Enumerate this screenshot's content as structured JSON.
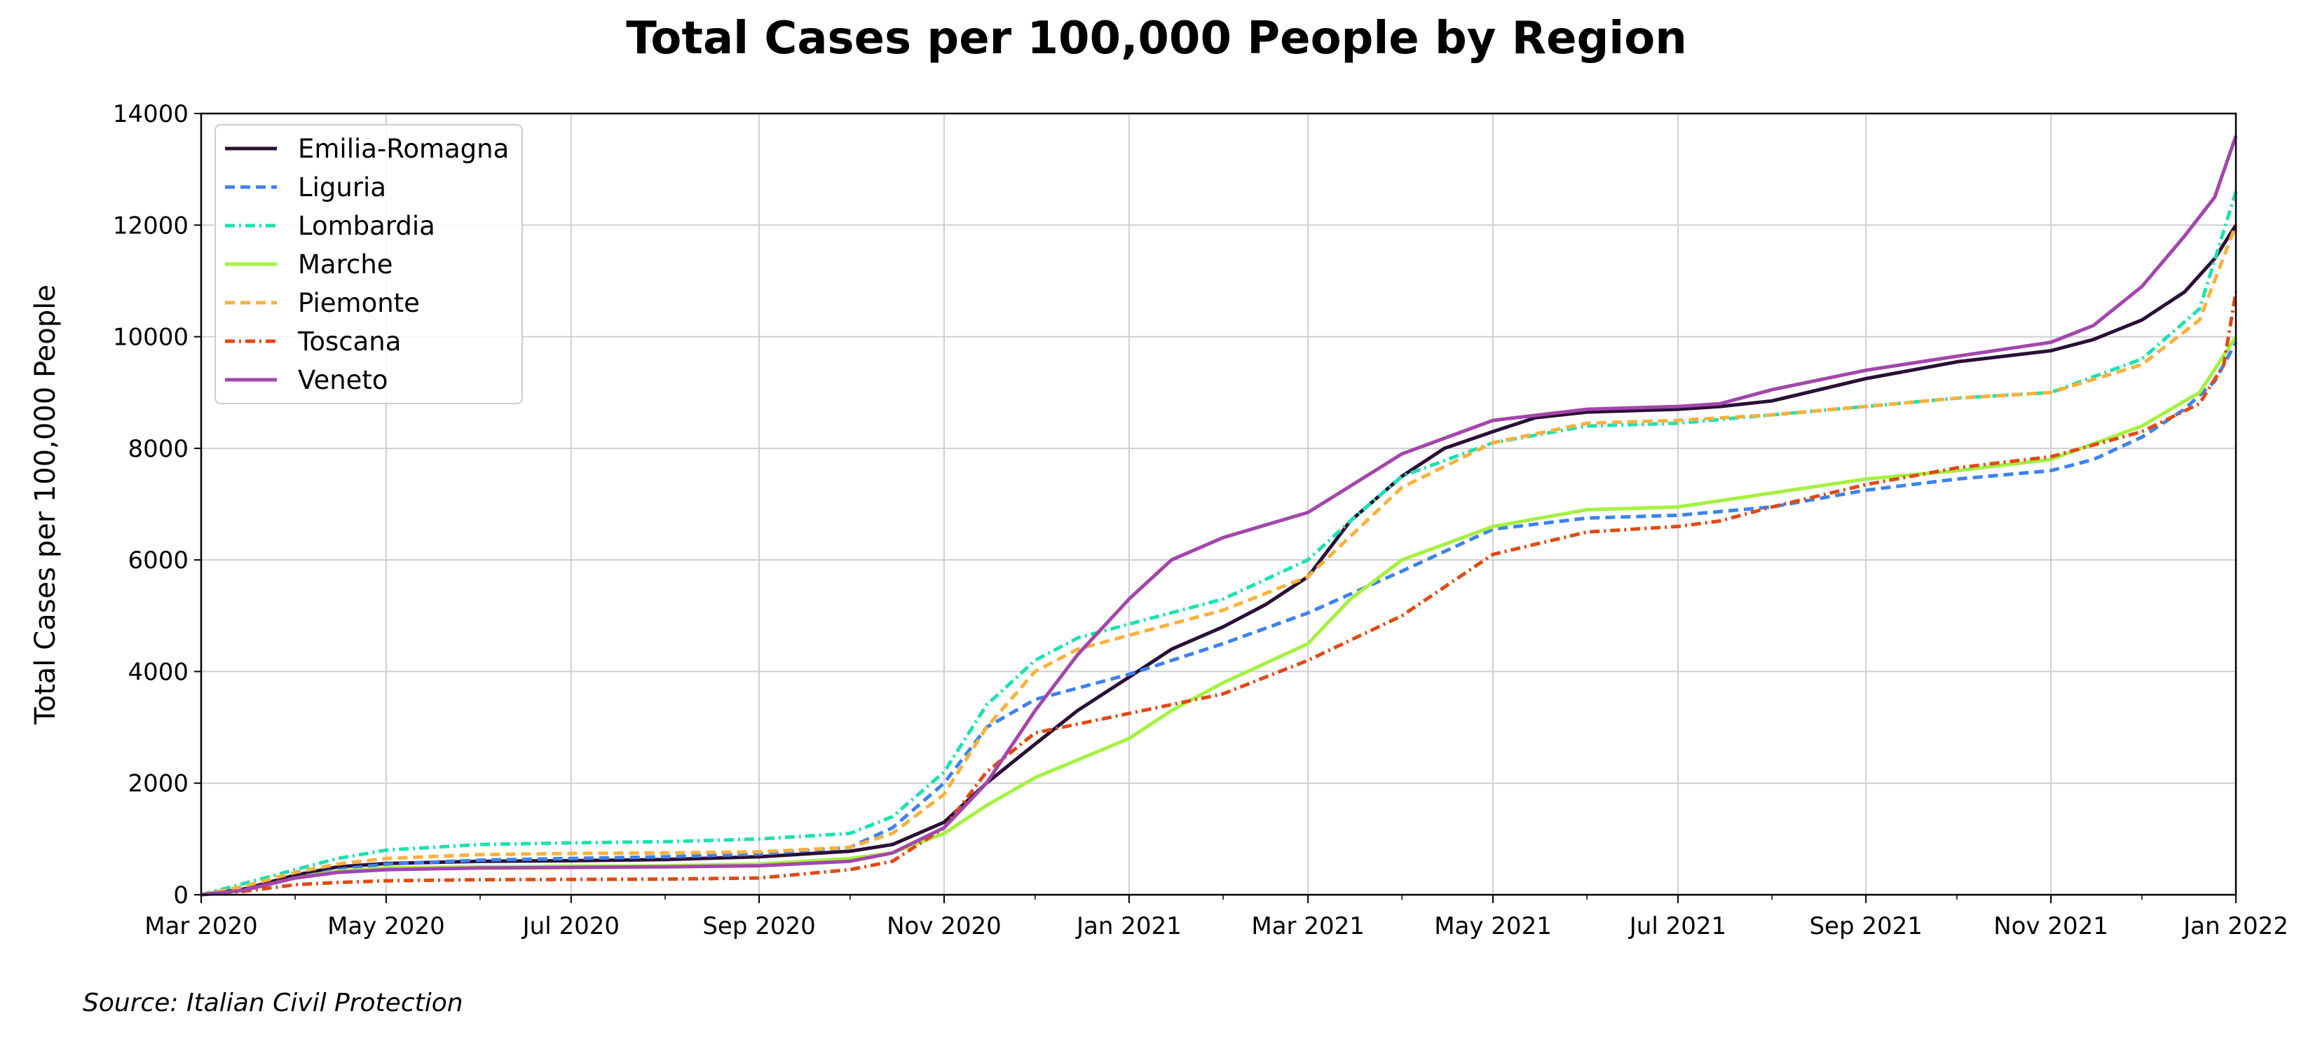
{
  "chart_data": {
    "type": "line",
    "title": "Total Cases per 100,000 People by Region",
    "xlabel": "",
    "ylabel": "Total Cases per 100,000 People",
    "source": "Source: Italian Civil Protection",
    "xlim": [
      "2020-03-01",
      "2022-01-01"
    ],
    "ylim": [
      0,
      14000
    ],
    "x_ticks": [
      {
        "date": "2020-03-01",
        "label": "Mar 2020"
      },
      {
        "date": "2020-05-01",
        "label": "May 2020"
      },
      {
        "date": "2020-07-01",
        "label": "Jul 2020"
      },
      {
        "date": "2020-09-01",
        "label": "Sep 2020"
      },
      {
        "date": "2020-11-01",
        "label": "Nov 2020"
      },
      {
        "date": "2021-01-01",
        "label": "Jan 2021"
      },
      {
        "date": "2021-03-01",
        "label": "Mar 2021"
      },
      {
        "date": "2021-05-01",
        "label": "May 2021"
      },
      {
        "date": "2021-07-01",
        "label": "Jul 2021"
      },
      {
        "date": "2021-09-01",
        "label": "Sep 2021"
      },
      {
        "date": "2021-11-01",
        "label": "Nov 2021"
      },
      {
        "date": "2022-01-01",
        "label": "Jan 2022"
      }
    ],
    "y_ticks": [
      0,
      2000,
      4000,
      6000,
      8000,
      10000,
      12000,
      14000
    ],
    "grid": true,
    "legend_position": "top-left",
    "series": [
      {
        "name": "Emilia-Romagna",
        "color": "#2a0f36",
        "dash": "solid",
        "points": [
          [
            "2020-03-01",
            0
          ],
          [
            "2020-03-15",
            100
          ],
          [
            "2020-04-01",
            350
          ],
          [
            "2020-04-15",
            500
          ],
          [
            "2020-05-01",
            560
          ],
          [
            "2020-06-01",
            600
          ],
          [
            "2020-07-01",
            610
          ],
          [
            "2020-08-01",
            630
          ],
          [
            "2020-09-01",
            680
          ],
          [
            "2020-10-01",
            780
          ],
          [
            "2020-10-15",
            900
          ],
          [
            "2020-11-01",
            1300
          ],
          [
            "2020-11-15",
            2000
          ],
          [
            "2020-12-01",
            2700
          ],
          [
            "2020-12-15",
            3300
          ],
          [
            "2021-01-01",
            3900
          ],
          [
            "2021-01-15",
            4400
          ],
          [
            "2021-02-01",
            4800
          ],
          [
            "2021-02-15",
            5200
          ],
          [
            "2021-03-01",
            5700
          ],
          [
            "2021-03-15",
            6700
          ],
          [
            "2021-04-01",
            7500
          ],
          [
            "2021-04-15",
            8000
          ],
          [
            "2021-05-01",
            8300
          ],
          [
            "2021-05-15",
            8550
          ],
          [
            "2021-06-01",
            8650
          ],
          [
            "2021-07-01",
            8700
          ],
          [
            "2021-07-15",
            8750
          ],
          [
            "2021-08-01",
            8850
          ],
          [
            "2021-09-01",
            9250
          ],
          [
            "2021-10-01",
            9550
          ],
          [
            "2021-11-01",
            9750
          ],
          [
            "2021-11-15",
            9950
          ],
          [
            "2021-12-01",
            10300
          ],
          [
            "2021-12-15",
            10800
          ],
          [
            "2021-12-25",
            11400
          ],
          [
            "2022-01-01",
            12000
          ]
        ]
      },
      {
        "name": "Liguria",
        "color": "#3d82ee",
        "dash": "dashed",
        "points": [
          [
            "2020-03-01",
            0
          ],
          [
            "2020-03-15",
            80
          ],
          [
            "2020-04-01",
            300
          ],
          [
            "2020-04-15",
            450
          ],
          [
            "2020-05-01",
            550
          ],
          [
            "2020-06-01",
            620
          ],
          [
            "2020-07-01",
            650
          ],
          [
            "2020-08-01",
            680
          ],
          [
            "2020-09-01",
            730
          ],
          [
            "2020-10-01",
            850
          ],
          [
            "2020-10-15",
            1200
          ],
          [
            "2020-11-01",
            2000
          ],
          [
            "2020-11-15",
            3000
          ],
          [
            "2020-12-01",
            3500
          ],
          [
            "2021-01-01",
            3950
          ],
          [
            "2021-02-01",
            4500
          ],
          [
            "2021-03-01",
            5050
          ],
          [
            "2021-04-01",
            5800
          ],
          [
            "2021-05-01",
            6550
          ],
          [
            "2021-06-01",
            6750
          ],
          [
            "2021-07-01",
            6800
          ],
          [
            "2021-08-01",
            6950
          ],
          [
            "2021-09-01",
            7250
          ],
          [
            "2021-10-01",
            7450
          ],
          [
            "2021-11-01",
            7600
          ],
          [
            "2021-11-15",
            7800
          ],
          [
            "2021-12-01",
            8200
          ],
          [
            "2021-12-15",
            8700
          ],
          [
            "2021-12-25",
            9200
          ],
          [
            "2022-01-01",
            9900
          ]
        ]
      },
      {
        "name": "Lombardia",
        "color": "#1ee0b0",
        "dash": "dashdot",
        "points": [
          [
            "2020-03-01",
            0
          ],
          [
            "2020-03-15",
            200
          ],
          [
            "2020-04-01",
            450
          ],
          [
            "2020-04-15",
            650
          ],
          [
            "2020-05-01",
            800
          ],
          [
            "2020-06-01",
            900
          ],
          [
            "2020-07-01",
            930
          ],
          [
            "2020-08-01",
            950
          ],
          [
            "2020-09-01",
            1000
          ],
          [
            "2020-10-01",
            1100
          ],
          [
            "2020-10-15",
            1400
          ],
          [
            "2020-11-01",
            2200
          ],
          [
            "2020-11-15",
            3400
          ],
          [
            "2020-12-01",
            4200
          ],
          [
            "2020-12-15",
            4600
          ],
          [
            "2021-01-01",
            4850
          ],
          [
            "2021-02-01",
            5300
          ],
          [
            "2021-03-01",
            6000
          ],
          [
            "2021-03-15",
            6700
          ],
          [
            "2021-04-01",
            7500
          ],
          [
            "2021-05-01",
            8100
          ],
          [
            "2021-06-01",
            8400
          ],
          [
            "2021-07-01",
            8450
          ],
          [
            "2021-08-01",
            8600
          ],
          [
            "2021-09-01",
            8750
          ],
          [
            "2021-10-01",
            8900
          ],
          [
            "2021-11-01",
            9000
          ],
          [
            "2021-12-01",
            9600
          ],
          [
            "2021-12-20",
            10500
          ],
          [
            "2022-01-01",
            12600
          ]
        ]
      },
      {
        "name": "Marche",
        "color": "#a4f140",
        "dash": "solid",
        "points": [
          [
            "2020-03-01",
            0
          ],
          [
            "2020-03-15",
            80
          ],
          [
            "2020-04-01",
            300
          ],
          [
            "2020-04-15",
            420
          ],
          [
            "2020-05-01",
            480
          ],
          [
            "2020-06-01",
            500
          ],
          [
            "2020-07-01",
            510
          ],
          [
            "2020-08-01",
            520
          ],
          [
            "2020-09-01",
            550
          ],
          [
            "2020-10-01",
            650
          ],
          [
            "2020-10-15",
            750
          ],
          [
            "2020-11-01",
            1100
          ],
          [
            "2020-11-15",
            1600
          ],
          [
            "2020-12-01",
            2100
          ],
          [
            "2021-01-01",
            2800
          ],
          [
            "2021-01-15",
            3300
          ],
          [
            "2021-02-01",
            3800
          ],
          [
            "2021-03-01",
            4500
          ],
          [
            "2021-03-15",
            5300
          ],
          [
            "2021-04-01",
            6000
          ],
          [
            "2021-05-01",
            6600
          ],
          [
            "2021-06-01",
            6900
          ],
          [
            "2021-07-01",
            6950
          ],
          [
            "2021-08-01",
            7200
          ],
          [
            "2021-09-01",
            7450
          ],
          [
            "2021-10-01",
            7600
          ],
          [
            "2021-11-01",
            7800
          ],
          [
            "2021-12-01",
            8400
          ],
          [
            "2021-12-20",
            9000
          ],
          [
            "2022-01-01",
            10000
          ]
        ]
      },
      {
        "name": "Piemonte",
        "color": "#fbb13c",
        "dash": "dashed",
        "points": [
          [
            "2020-03-01",
            0
          ],
          [
            "2020-03-15",
            150
          ],
          [
            "2020-04-01",
            400
          ],
          [
            "2020-04-15",
            550
          ],
          [
            "2020-05-01",
            650
          ],
          [
            "2020-06-01",
            720
          ],
          [
            "2020-07-01",
            740
          ],
          [
            "2020-08-01",
            750
          ],
          [
            "2020-09-01",
            770
          ],
          [
            "2020-10-01",
            850
          ],
          [
            "2020-10-15",
            1100
          ],
          [
            "2020-11-01",
            1800
          ],
          [
            "2020-11-15",
            3000
          ],
          [
            "2020-12-01",
            4000
          ],
          [
            "2020-12-15",
            4400
          ],
          [
            "2021-01-01",
            4650
          ],
          [
            "2021-02-01",
            5100
          ],
          [
            "2021-03-01",
            5700
          ],
          [
            "2021-04-01",
            7300
          ],
          [
            "2021-05-01",
            8100
          ],
          [
            "2021-06-01",
            8450
          ],
          [
            "2021-07-01",
            8500
          ],
          [
            "2021-08-01",
            8600
          ],
          [
            "2021-09-01",
            8750
          ],
          [
            "2021-10-01",
            8900
          ],
          [
            "2021-11-01",
            9000
          ],
          [
            "2021-12-01",
            9500
          ],
          [
            "2021-12-20",
            10300
          ],
          [
            "2022-01-01",
            12000
          ]
        ]
      },
      {
        "name": "Toscana",
        "color": "#e04a13",
        "dash": "dashdot",
        "points": [
          [
            "2020-03-01",
            0
          ],
          [
            "2020-03-15",
            60
          ],
          [
            "2020-04-01",
            180
          ],
          [
            "2020-04-15",
            220
          ],
          [
            "2020-05-01",
            250
          ],
          [
            "2020-06-01",
            270
          ],
          [
            "2020-07-01",
            275
          ],
          [
            "2020-08-01",
            280
          ],
          [
            "2020-09-01",
            300
          ],
          [
            "2020-10-01",
            450
          ],
          [
            "2020-10-15",
            600
          ],
          [
            "2020-11-01",
            1200
          ],
          [
            "2020-11-15",
            2200
          ],
          [
            "2020-12-01",
            2900
          ],
          [
            "2021-01-01",
            3250
          ],
          [
            "2021-02-01",
            3600
          ],
          [
            "2021-03-01",
            4200
          ],
          [
            "2021-04-01",
            5000
          ],
          [
            "2021-05-01",
            6100
          ],
          [
            "2021-06-01",
            6500
          ],
          [
            "2021-07-01",
            6600
          ],
          [
            "2021-07-15",
            6700
          ],
          [
            "2021-08-01",
            6950
          ],
          [
            "2021-09-01",
            7350
          ],
          [
            "2021-10-01",
            7650
          ],
          [
            "2021-11-01",
            7850
          ],
          [
            "2021-12-01",
            8300
          ],
          [
            "2021-12-20",
            8800
          ],
          [
            "2021-12-28",
            9500
          ],
          [
            "2022-01-01",
            10800
          ]
        ]
      },
      {
        "name": "Veneto",
        "color": "#a346ab",
        "dash": "solid",
        "points": [
          [
            "2020-03-01",
            0
          ],
          [
            "2020-03-15",
            80
          ],
          [
            "2020-04-01",
            300
          ],
          [
            "2020-04-15",
            400
          ],
          [
            "2020-05-01",
            450
          ],
          [
            "2020-06-01",
            480
          ],
          [
            "2020-07-01",
            490
          ],
          [
            "2020-08-01",
            500
          ],
          [
            "2020-09-01",
            520
          ],
          [
            "2020-10-01",
            600
          ],
          [
            "2020-10-15",
            750
          ],
          [
            "2020-11-01",
            1200
          ],
          [
            "2020-11-15",
            2000
          ],
          [
            "2020-12-01",
            3300
          ],
          [
            "2020-12-15",
            4300
          ],
          [
            "2021-01-01",
            5300
          ],
          [
            "2021-01-15",
            6000
          ],
          [
            "2021-02-01",
            6400
          ],
          [
            "2021-03-01",
            6850
          ],
          [
            "2021-04-01",
            7900
          ],
          [
            "2021-05-01",
            8500
          ],
          [
            "2021-06-01",
            8700
          ],
          [
            "2021-07-01",
            8750
          ],
          [
            "2021-07-15",
            8800
          ],
          [
            "2021-08-01",
            9050
          ],
          [
            "2021-09-01",
            9400
          ],
          [
            "2021-10-01",
            9650
          ],
          [
            "2021-11-01",
            9900
          ],
          [
            "2021-11-15",
            10200
          ],
          [
            "2021-12-01",
            10900
          ],
          [
            "2021-12-15",
            11800
          ],
          [
            "2021-12-25",
            12500
          ],
          [
            "2022-01-01",
            13600
          ]
        ]
      }
    ]
  }
}
